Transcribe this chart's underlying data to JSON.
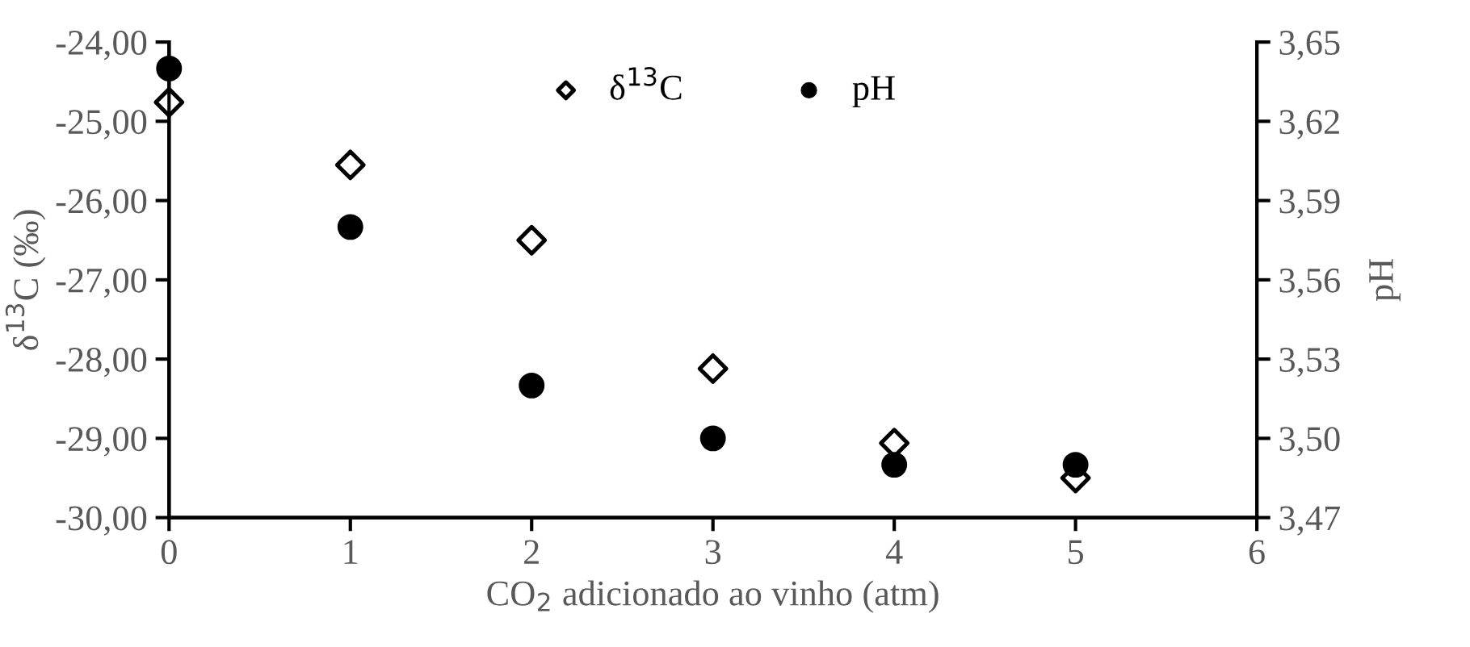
{
  "chart_data": {
    "type": "scatter",
    "xlabel": "CO$_{2}$ adicionado ao vinho (atm)",
    "ylabel": "δ$^{13}$C (‰)",
    "y2label": "pH",
    "x": [
      0,
      1,
      2,
      3,
      4,
      5
    ],
    "series": [
      {
        "name": "δ$^{13}$C",
        "color": "#000000",
        "marker": "diamond",
        "values": [
          -24.76,
          -25.55,
          -26.5,
          -28.12,
          -29.06,
          -29.5
        ]
      },
      {
        "name": "pH",
        "color": "#000000",
        "marker": "circle",
        "axis": "y2",
        "values": [
          3.64,
          3.58,
          3.52,
          3.5,
          3.49,
          3.49
        ]
      }
    ],
    "xlim": [
      0,
      6
    ],
    "xticks": [
      0,
      1,
      2,
      3,
      4,
      5,
      6
    ],
    "ylim": [
      -30,
      -24
    ],
    "yticks": [
      {
        "value": -30,
        "label": "-30,00"
      },
      {
        "value": -29,
        "label": "-29,00"
      },
      {
        "value": -28,
        "label": "-28,00"
      },
      {
        "value": -27,
        "label": "-27,00"
      },
      {
        "value": -26,
        "label": "-26,00"
      },
      {
        "value": -25,
        "label": "-25,00"
      },
      {
        "value": -24,
        "label": "-24,00"
      }
    ],
    "y2lim": [
      3.47,
      3.65
    ],
    "y2ticks": [
      {
        "value": 3.47,
        "label": "3,47"
      },
      {
        "value": 3.5,
        "label": "3,50"
      },
      {
        "value": 3.53,
        "label": "3,53"
      },
      {
        "value": 3.56,
        "label": "3,56"
      },
      {
        "value": 3.59,
        "label": "3,59"
      },
      {
        "value": 3.62,
        "label": "3,62"
      },
      {
        "value": 3.65,
        "label": "3,65"
      }
    ],
    "grid": false,
    "legend": "top"
  }
}
